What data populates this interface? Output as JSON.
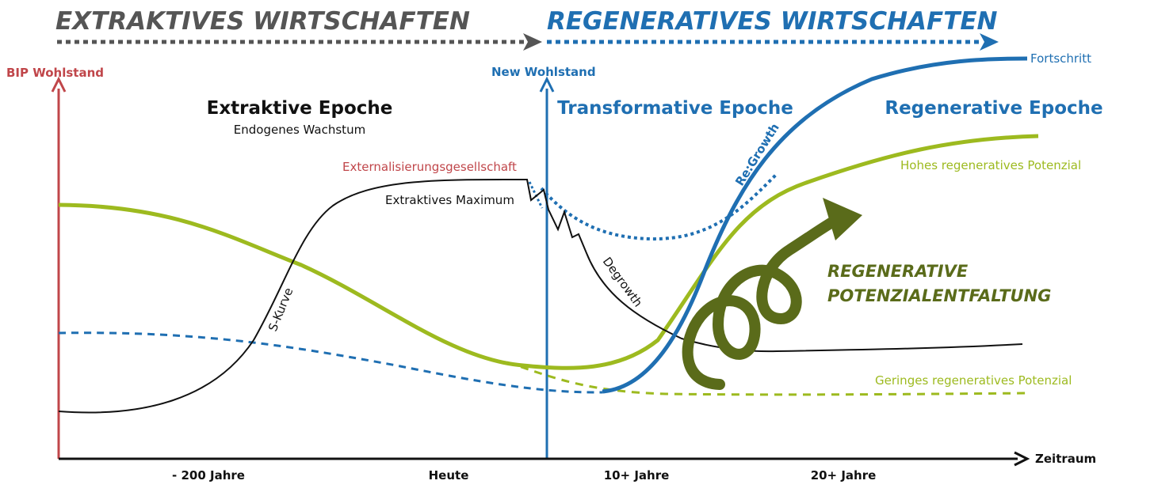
{
  "headers": {
    "extractive": "EXTRAKTIVES WIRTSCHAFTEN",
    "regenerative": "REGENERATIVES WIRTSCHAFTEN"
  },
  "axes": {
    "left_label": "BIP Wohlstand",
    "mid_label": "New  Wohlstand",
    "x_label": "Zeitraum",
    "ticks": [
      "- 200 Jahre",
      "Heute",
      "10+ Jahre",
      "20+ Jahre"
    ]
  },
  "epochs": {
    "extractive": {
      "title": "Extraktive Epoche",
      "subtitle": "Endogenes Wachstum"
    },
    "transformative": {
      "title": "Transformative Epoche"
    },
    "regenerative": {
      "title": "Regenerative Epoche"
    }
  },
  "annotations": {
    "externalisierung": "Externalisierungsgesellschaft",
    "maximum": "Extraktives Maximum",
    "s_kurve": "S-Kurve",
    "degrowth": "Degrowth",
    "regrowth": "Re:Growth",
    "fortschritt": "Fortschritt",
    "hohes": "Hohes regeneratives Potenzial",
    "geringes": "Geringes regeneratives Potenzial",
    "spiral_line1": "REGENERATIVE",
    "spiral_line2": "POTENZIALENTFALTUNG"
  },
  "colors": {
    "gray": "#555555",
    "red": "#c0464a",
    "blue": "#1f6fb2",
    "green": "#9dba1f",
    "dark_green": "#5a6b1a",
    "black": "#111111"
  }
}
